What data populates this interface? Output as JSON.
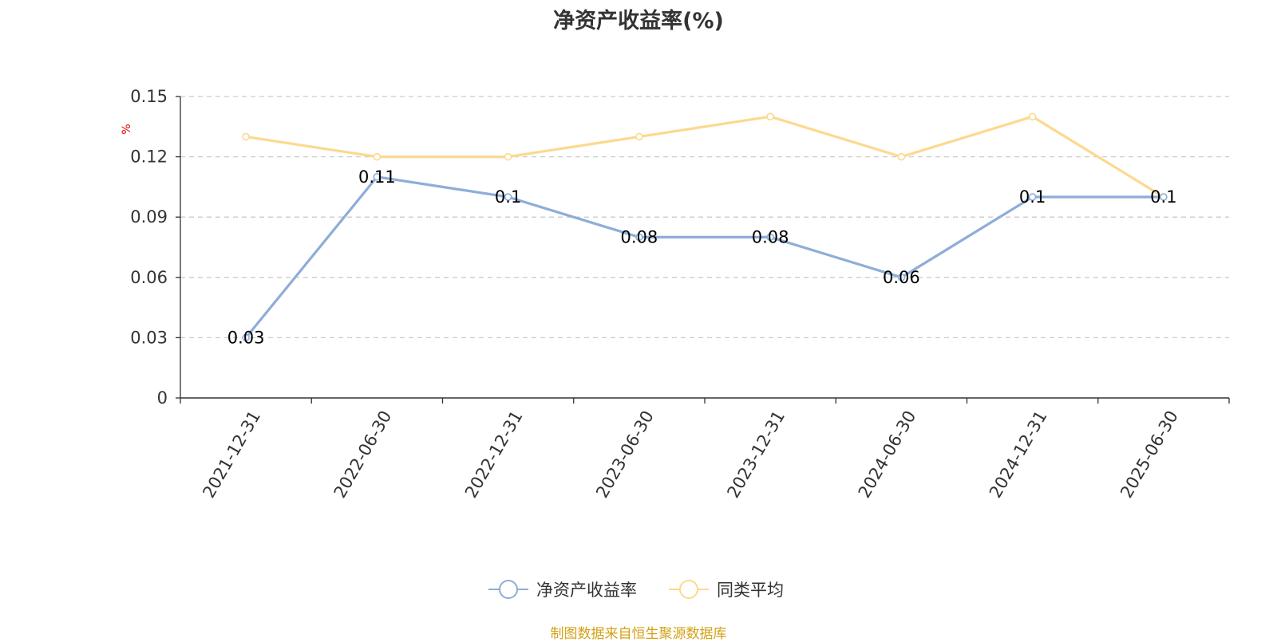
{
  "chart_data": {
    "type": "line",
    "title": "净资产收益率(%)",
    "ylabel": "%",
    "ylim": [
      0,
      0.15
    ],
    "yticks": [
      "0",
      "0.03",
      "0.06",
      "0.09",
      "0.12",
      "0.15"
    ],
    "categories": [
      "2021-12-31",
      "2022-06-30",
      "2022-12-31",
      "2023-06-30",
      "2023-12-31",
      "2024-06-30",
      "2024-12-31",
      "2025-06-30"
    ],
    "series": [
      {
        "name": "净资产收益率",
        "color": "#8eadd8",
        "values": [
          0.03,
          0.11,
          0.1,
          0.08,
          0.08,
          0.06,
          0.1,
          0.1
        ],
        "labels": [
          "0.03",
          "0.11",
          "0.1",
          "0.08",
          "0.08",
          "0.06",
          "0.1",
          "0.1"
        ]
      },
      {
        "name": "同类平均",
        "color": "#fcd98e",
        "values": [
          0.13,
          0.12,
          0.12,
          0.13,
          0.14,
          0.12,
          0.14,
          0.1
        ]
      }
    ],
    "grid": true,
    "legend_position": "bottom-center"
  },
  "footer": {
    "source": "制图数据来自恒生聚源数据库"
  }
}
